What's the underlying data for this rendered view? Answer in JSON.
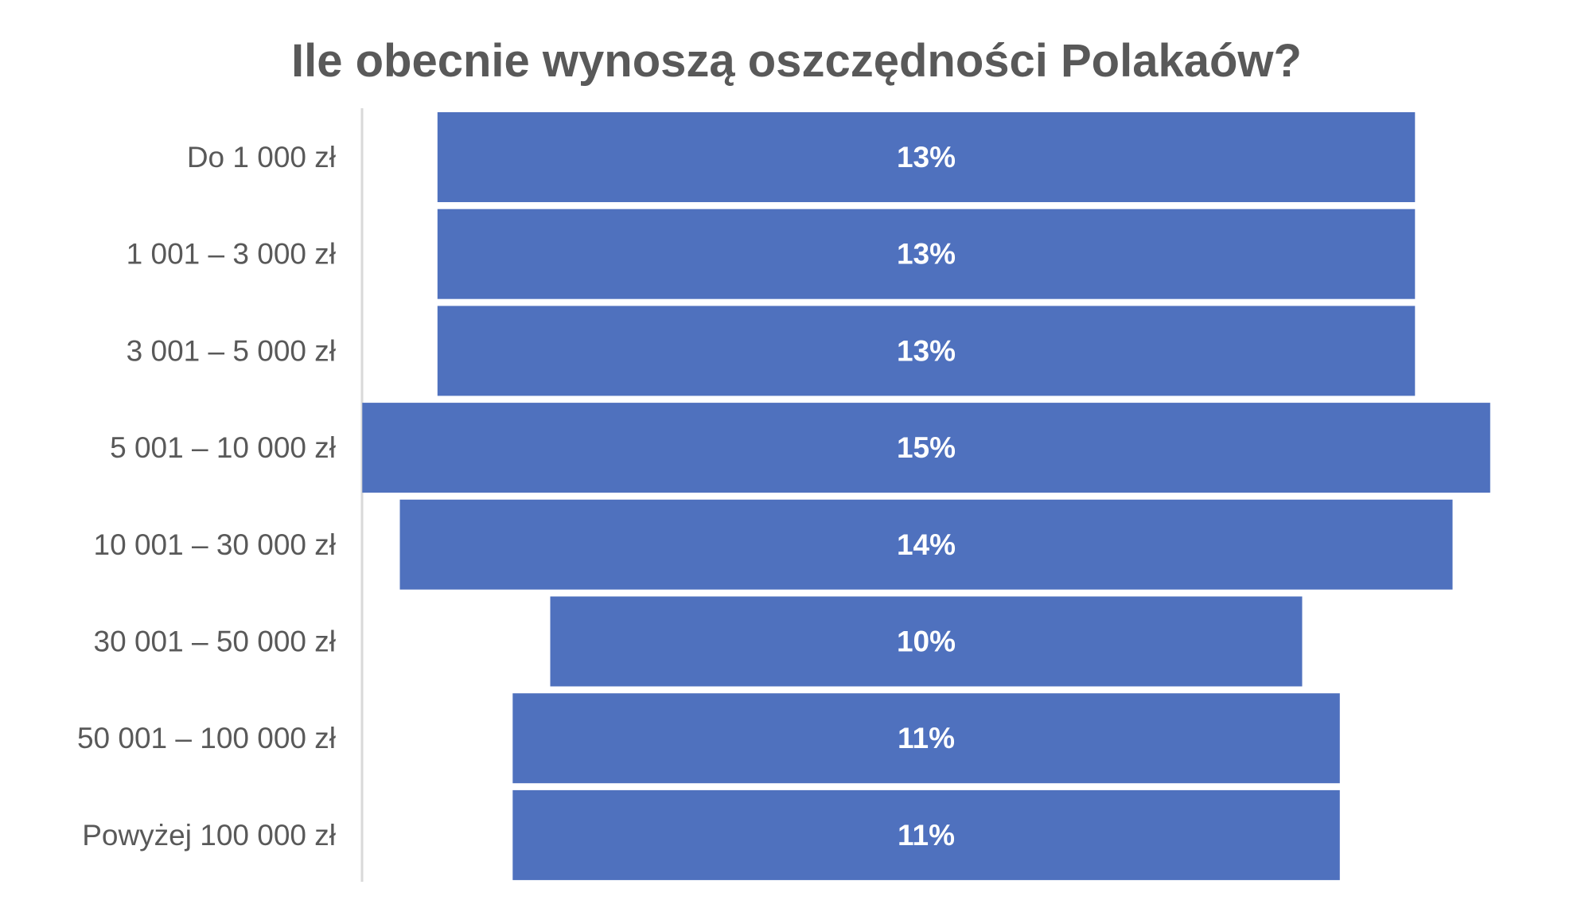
{
  "chart_data": {
    "type": "bar",
    "orientation": "horizontal",
    "subtype": "funnel",
    "title": "Ile obecnie wynoszą oszczędności Polakaów?",
    "categories": [
      "Do 1 000 zł",
      "1 001 – 3 000 zł",
      "3 001 – 5 000 zł",
      "5 001 – 10 000 zł",
      "10 001 – 30 000 zł",
      "30 001 – 50 000 zł",
      "50 001 – 100 000 zł",
      "Powyżej 100 000 zł"
    ],
    "values": [
      13,
      13,
      13,
      15,
      14,
      10,
      11,
      11
    ],
    "data_labels": [
      "13%",
      "13%",
      "13%",
      "15%",
      "14%",
      "10%",
      "11%",
      "11%"
    ],
    "unit": "%",
    "xlabel": "",
    "ylabel": "",
    "grid": false,
    "legend": "none",
    "colors": {
      "bar": "#4F71BE",
      "title": "#595959",
      "category_text": "#595959",
      "data_label_text": "#FFFFFF",
      "axis_line": "#D9D9D9"
    }
  }
}
